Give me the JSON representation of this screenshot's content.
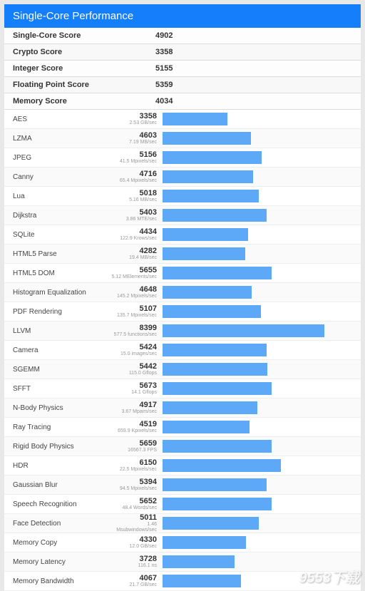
{
  "header": {
    "title": "Single-Core Performance"
  },
  "summary": [
    {
      "label": "Single-Core Score",
      "value": "4902"
    },
    {
      "label": "Crypto Score",
      "value": "3358"
    },
    {
      "label": "Integer Score",
      "value": "5155"
    },
    {
      "label": "Floating Point Score",
      "value": "5359"
    },
    {
      "label": "Memory Score",
      "value": "4034"
    }
  ],
  "max_score": 10000,
  "bar_color": "#5da8f7",
  "benchmarks": [
    {
      "name": "AES",
      "score": "3358",
      "rate": "2.53 GB/sec"
    },
    {
      "name": "LZMA",
      "score": "4603",
      "rate": "7.19 MB/sec"
    },
    {
      "name": "JPEG",
      "score": "5156",
      "rate": "41.5 Mpixels/sec"
    },
    {
      "name": "Canny",
      "score": "4716",
      "rate": "65.4 Mpixels/sec"
    },
    {
      "name": "Lua",
      "score": "5018",
      "rate": "5.16 MB/sec"
    },
    {
      "name": "Dijkstra",
      "score": "5403",
      "rate": "3.86 MTE/sec"
    },
    {
      "name": "SQLite",
      "score": "4434",
      "rate": "122.9 Krows/sec"
    },
    {
      "name": "HTML5 Parse",
      "score": "4282",
      "rate": "19.4 MB/sec"
    },
    {
      "name": "HTML5 DOM",
      "score": "5655",
      "rate": "5.12 MElements/sec"
    },
    {
      "name": "Histogram Equalization",
      "score": "4648",
      "rate": "145.2 Mpixels/sec"
    },
    {
      "name": "PDF Rendering",
      "score": "5107",
      "rate": "135.7 Mpixels/sec"
    },
    {
      "name": "LLVM",
      "score": "8399",
      "rate": "577.5 functions/sec"
    },
    {
      "name": "Camera",
      "score": "5424",
      "rate": "15.0 images/sec"
    },
    {
      "name": "SGEMM",
      "score": "5442",
      "rate": "115.0 Gflops"
    },
    {
      "name": "SFFT",
      "score": "5673",
      "rate": "14.1 Gflops"
    },
    {
      "name": "N-Body Physics",
      "score": "4917",
      "rate": "3.67 Mpairs/sec"
    },
    {
      "name": "Ray Tracing",
      "score": "4519",
      "rate": "659.9 Kpixels/sec"
    },
    {
      "name": "Rigid Body Physics",
      "score": "5659",
      "rate": "16567.3 FPS"
    },
    {
      "name": "HDR",
      "score": "6150",
      "rate": "22.5 Mpixels/sec"
    },
    {
      "name": "Gaussian Blur",
      "score": "5394",
      "rate": "94.5 Mpixels/sec"
    },
    {
      "name": "Speech Recognition",
      "score": "5652",
      "rate": "48.4 Words/sec"
    },
    {
      "name": "Face Detection",
      "score": "5011",
      "rate": "1.46 Msubwindows/sec"
    },
    {
      "name": "Memory Copy",
      "score": "4330",
      "rate": "12.0 GB/sec"
    },
    {
      "name": "Memory Latency",
      "score": "3728",
      "rate": "116.1 ns"
    },
    {
      "name": "Memory Bandwidth",
      "score": "4067",
      "rate": "21.7 GB/sec"
    }
  ],
  "watermark": {
    "main": "9553下载",
    "sub": ".com"
  }
}
